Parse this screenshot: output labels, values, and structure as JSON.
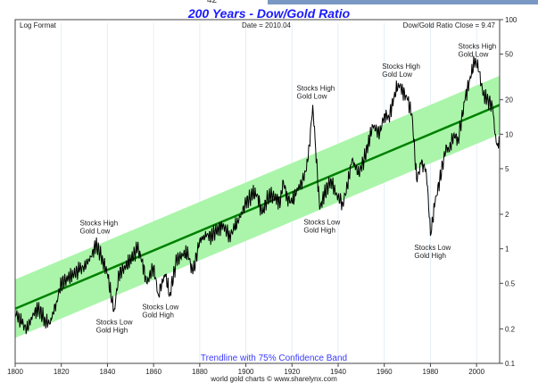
{
  "chart_data": {
    "type": "line",
    "title": "200 Years - Dow/Gold Ratio",
    "subtitle_left": "Log Format",
    "subtitle_center": "Date = 2010.04",
    "subtitle_right": "Dow/Gold Ratio Close = 9.47",
    "band_label": "Trendline with 75% Confidence Band",
    "credit": "world gold charts © www.sharelynx.com",
    "xlim": [
      1800,
      2010
    ],
    "ylim": [
      0.1,
      100
    ],
    "yscale": "log",
    "x_ticks": [
      "1800",
      "1820",
      "1840",
      "1860",
      "1880",
      "1900",
      "1920",
      "1940",
      "1960",
      "1980",
      "2000"
    ],
    "y_ticks": [
      "100",
      "50",
      "20",
      "10",
      "5",
      "2",
      "1",
      "0.5",
      "0.2",
      "0.1"
    ],
    "trendline": {
      "start": [
        1800,
        0.3
      ],
      "end": [
        2010,
        18
      ],
      "band_factor": 1.8
    },
    "series": [
      {
        "name": "Dow/Gold Ratio",
        "x": [
          1800,
          1803,
          1805,
          1808,
          1810,
          1813,
          1815,
          1818,
          1820,
          1823,
          1825,
          1828,
          1830,
          1833,
          1835,
          1838,
          1840,
          1842,
          1843,
          1845,
          1848,
          1850,
          1853,
          1855,
          1857,
          1860,
          1862,
          1865,
          1867,
          1870,
          1873,
          1875,
          1877,
          1880,
          1883,
          1885,
          1888,
          1890,
          1893,
          1895,
          1897,
          1900,
          1903,
          1905,
          1907,
          1910,
          1913,
          1915,
          1916,
          1918,
          1920,
          1922,
          1925,
          1927,
          1929,
          1930,
          1932,
          1934,
          1937,
          1939,
          1942,
          1944,
          1946,
          1949,
          1950,
          1953,
          1955,
          1958,
          1960,
          1962,
          1964,
          1966,
          1968,
          1970,
          1972,
          1974,
          1976,
          1978,
          1979,
          1980,
          1982,
          1984,
          1987,
          1988,
          1990,
          1992,
          1995,
          1997,
          1999,
          2000,
          2001,
          2002,
          2003,
          2005,
          2006,
          2007,
          2008,
          2009,
          2010
        ],
        "y": [
          0.28,
          0.22,
          0.2,
          0.27,
          0.3,
          0.24,
          0.22,
          0.35,
          0.5,
          0.55,
          0.6,
          0.65,
          0.7,
          0.85,
          1.1,
          0.8,
          0.6,
          0.35,
          0.3,
          0.6,
          0.7,
          0.8,
          1.0,
          0.8,
          0.5,
          0.7,
          0.4,
          0.6,
          0.4,
          0.8,
          0.9,
          0.9,
          0.6,
          1.2,
          1.3,
          1.3,
          1.5,
          1.6,
          1.3,
          1.5,
          1.8,
          2.5,
          3.0,
          3.0,
          2.0,
          3.0,
          2.8,
          2.5,
          4.0,
          2.8,
          2.5,
          3.2,
          4.0,
          6.0,
          18,
          9,
          2.2,
          3.0,
          4.0,
          3.0,
          2.5,
          3.5,
          6.0,
          4.5,
          5.0,
          8.0,
          12,
          10,
          15,
          14,
          20,
          28,
          24,
          20,
          15,
          4.0,
          5.5,
          5.0,
          3.0,
          1.3,
          2.5,
          4.0,
          8.0,
          7.0,
          10,
          9.0,
          20,
          30,
          42,
          40,
          35,
          27,
          22,
          20,
          18,
          17,
          10,
          8.0,
          9.47
        ]
      }
    ],
    "annotations": [
      {
        "text": [
          "Stocks High",
          "Gold Low"
        ],
        "x": 1835,
        "y": 1.2
      },
      {
        "text": [
          "Stocks Low",
          "Gold High"
        ],
        "x": 1842,
        "y": 0.28
      },
      {
        "text": [
          "Stocks Low",
          "Gold High"
        ],
        "x": 1862,
        "y": 0.38
      },
      {
        "text": [
          "Stocks High",
          "Gold Low"
        ],
        "x": 1929,
        "y": 18
      },
      {
        "text": [
          "Stocks Low",
          "Gold High"
        ],
        "x": 1932,
        "y": 2.1
      },
      {
        "text": [
          "Stocks High",
          "Gold Low"
        ],
        "x": 1966,
        "y": 28
      },
      {
        "text": [
          "Stocks Low",
          "Gold High"
        ],
        "x": 1980,
        "y": 1.25
      },
      {
        "text": [
          "Stocks High",
          "Gold Low"
        ],
        "x": 1999,
        "y": 42
      }
    ],
    "grid": true,
    "colors": {
      "title": "#1a1aff",
      "band": "#aaf5aa",
      "trend": "#008000",
      "line": "#000000",
      "band_label": "#3a3aff"
    }
  },
  "ui": {
    "top_number": "42"
  }
}
